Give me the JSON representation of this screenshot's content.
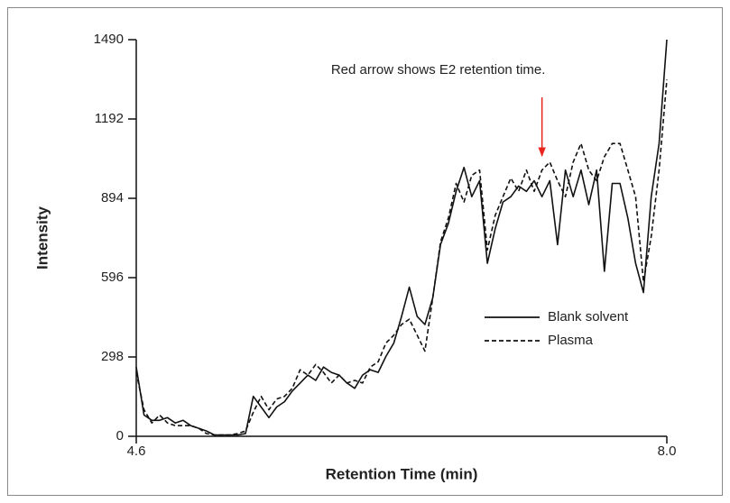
{
  "chart_data": {
    "type": "line",
    "xlabel": "Retention Time (min)",
    "ylabel": "Intensity",
    "annotation": {
      "text": "Red arrow shows E2 retention time.",
      "x": 7.2,
      "color": "#e8251c"
    },
    "x": [
      4.6,
      4.65,
      4.7,
      4.75,
      4.8,
      4.85,
      4.9,
      4.95,
      5.0,
      5.05,
      5.1,
      5.15,
      5.2,
      5.25,
      5.3,
      5.35,
      5.4,
      5.45,
      5.5,
      5.55,
      5.6,
      5.65,
      5.7,
      5.75,
      5.8,
      5.85,
      5.9,
      5.95,
      6.0,
      6.05,
      6.1,
      6.15,
      6.2,
      6.25,
      6.3,
      6.35,
      6.4,
      6.45,
      6.5,
      6.55,
      6.6,
      6.65,
      6.7,
      6.75,
      6.8,
      6.85,
      6.9,
      6.95,
      7.0,
      7.05,
      7.1,
      7.15,
      7.2,
      7.25,
      7.3,
      7.35,
      7.4,
      7.45,
      7.5,
      7.55,
      7.6,
      7.65,
      7.7,
      7.75,
      7.8,
      7.85,
      7.9,
      7.95,
      8.0
    ],
    "series": [
      {
        "name": "Blank solvent",
        "color": "#111111",
        "line_style": "solid",
        "values": [
          260,
          80,
          60,
          60,
          70,
          50,
          60,
          40,
          30,
          20,
          5,
          5,
          5,
          5,
          10,
          150,
          110,
          70,
          110,
          130,
          170,
          200,
          230,
          210,
          260,
          240,
          230,
          200,
          180,
          230,
          250,
          240,
          300,
          350,
          450,
          560,
          450,
          420,
          520,
          720,
          800,
          920,
          1010,
          900,
          960,
          650,
          780,
          880,
          900,
          940,
          920,
          960,
          900,
          960,
          720,
          1000,
          900,
          1000,
          870,
          1000,
          620,
          950,
          950,
          820,
          650,
          540,
          900,
          1100,
          1490
        ]
      },
      {
        "name": "Plasma",
        "color": "#111111",
        "line_style": "dashed",
        "values": [
          240,
          100,
          50,
          80,
          50,
          40,
          40,
          40,
          30,
          10,
          5,
          5,
          5,
          10,
          20,
          90,
          150,
          100,
          140,
          150,
          180,
          250,
          230,
          270,
          240,
          200,
          230,
          200,
          210,
          200,
          260,
          280,
          350,
          380,
          420,
          440,
          380,
          320,
          520,
          730,
          820,
          950,
          880,
          980,
          1000,
          700,
          830,
          900,
          970,
          920,
          1000,
          920,
          1000,
          1030,
          960,
          900,
          1030,
          1100,
          1000,
          960,
          1050,
          1100,
          1100,
          1000,
          900,
          580,
          750,
          1000,
          1340
        ]
      }
    ],
    "xlim": [
      4.6,
      8.0
    ],
    "xticks": [
      4.6,
      {
        "value": 8,
        "label": "8.0"
      }
    ],
    "ylim": [
      0,
      1490
    ],
    "yticks": [
      0,
      298,
      596,
      894,
      1192,
      1490
    ],
    "grid": false,
    "legend": "center right"
  }
}
